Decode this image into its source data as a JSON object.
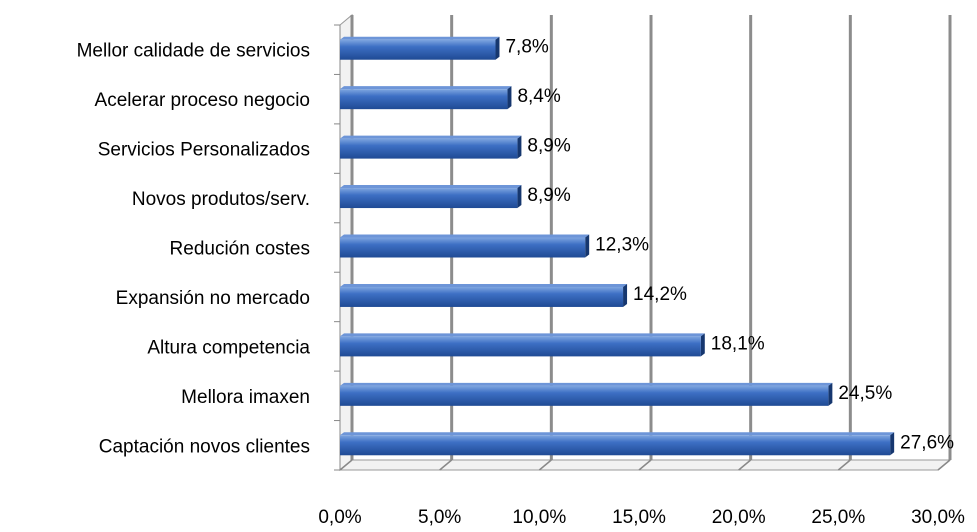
{
  "chart_data": {
    "type": "bar",
    "orientation": "horizontal",
    "categories": [
      "Mellor calidade de servicios",
      "Acelerar proceso negocio",
      "Servicios Personalizados",
      "Novos produtos/serv.",
      "Redución costes",
      "Expansión no mercado",
      "Altura competencia",
      "Mellora imaxen",
      "Captación novos clientes"
    ],
    "values": [
      7.8,
      8.4,
      8.9,
      8.9,
      12.3,
      14.2,
      18.1,
      24.5,
      27.6
    ],
    "value_labels": [
      "7,8%",
      "8,4%",
      "8,9%",
      "8,9%",
      "12,3%",
      "14,2%",
      "18,1%",
      "24,5%",
      "27,6%"
    ],
    "color": "#2e5fb0",
    "xlim": [
      0,
      30
    ],
    "xticks": [
      {
        "value": 0,
        "label": "0,0%"
      },
      {
        "value": 5,
        "label": "5,0%"
      },
      {
        "value": 10,
        "label": "10,0%"
      },
      {
        "value": 15,
        "label": "15,0%"
      },
      {
        "value": 20,
        "label": "20,0%"
      },
      {
        "value": 25,
        "label": "25,0%"
      },
      {
        "value": 30,
        "label": "30,0%"
      }
    ],
    "grid": true
  }
}
